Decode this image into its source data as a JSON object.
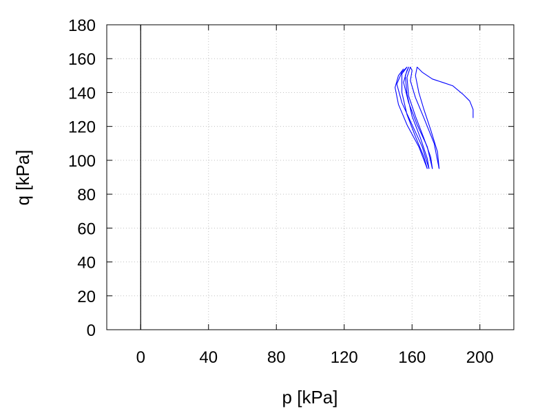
{
  "colors": {
    "series": "#0000ff",
    "frame": "#000000",
    "grid": "#bfbfbf"
  },
  "chart_data": {
    "type": "line",
    "xlabel": "p [kPa]",
    "ylabel": "q [kPa]",
    "xlim": [
      -20,
      220
    ],
    "ylim": [
      0,
      180
    ],
    "xticks": [
      0,
      40,
      80,
      120,
      160,
      200
    ],
    "yticks": [
      0,
      20,
      40,
      60,
      80,
      100,
      120,
      140,
      160,
      180
    ],
    "grid": true,
    "zero_line_x": 0,
    "series": [
      {
        "points": [
          [
            196,
            125
          ],
          [
            196,
            130
          ],
          [
            194,
            135
          ],
          [
            190,
            139
          ],
          [
            184,
            144
          ],
          [
            178,
            146
          ],
          [
            172,
            148
          ],
          [
            166,
            152
          ],
          [
            163,
            155
          ],
          [
            162,
            150
          ],
          [
            164,
            140
          ],
          [
            167,
            130
          ],
          [
            171,
            118
          ],
          [
            175,
            105
          ],
          [
            176,
            95
          ]
        ]
      },
      {
        "points": [
          [
            176,
            95
          ],
          [
            173,
            110
          ],
          [
            167,
            125
          ],
          [
            162,
            137
          ],
          [
            159,
            147
          ],
          [
            160,
            153
          ],
          [
            159,
            155
          ],
          [
            157,
            149
          ],
          [
            158,
            138
          ],
          [
            162,
            126
          ],
          [
            167,
            113
          ],
          [
            171,
            102
          ],
          [
            172,
            95
          ]
        ]
      },
      {
        "points": [
          [
            172,
            95
          ],
          [
            169,
            108
          ],
          [
            163,
            121
          ],
          [
            158,
            134
          ],
          [
            155,
            146
          ],
          [
            157,
            153
          ],
          [
            158,
            155
          ],
          [
            156,
            150
          ],
          [
            157,
            139
          ],
          [
            160,
            126
          ],
          [
            165,
            113
          ],
          [
            169,
            101
          ],
          [
            170,
            95
          ]
        ]
      },
      {
        "points": [
          [
            170,
            95
          ],
          [
            166,
            108
          ],
          [
            160,
            121
          ],
          [
            154,
            134
          ],
          [
            151,
            145
          ],
          [
            154,
            152
          ],
          [
            157,
            155
          ],
          [
            154,
            151
          ],
          [
            154,
            140
          ],
          [
            157,
            127
          ],
          [
            162,
            114
          ],
          [
            167,
            102
          ],
          [
            169,
            95
          ]
        ]
      },
      {
        "points": [
          [
            169,
            95
          ],
          [
            164,
            108
          ],
          [
            157,
            121
          ],
          [
            152,
            133
          ],
          [
            150,
            143
          ],
          [
            152,
            150
          ],
          [
            155,
            154
          ]
        ]
      }
    ]
  }
}
